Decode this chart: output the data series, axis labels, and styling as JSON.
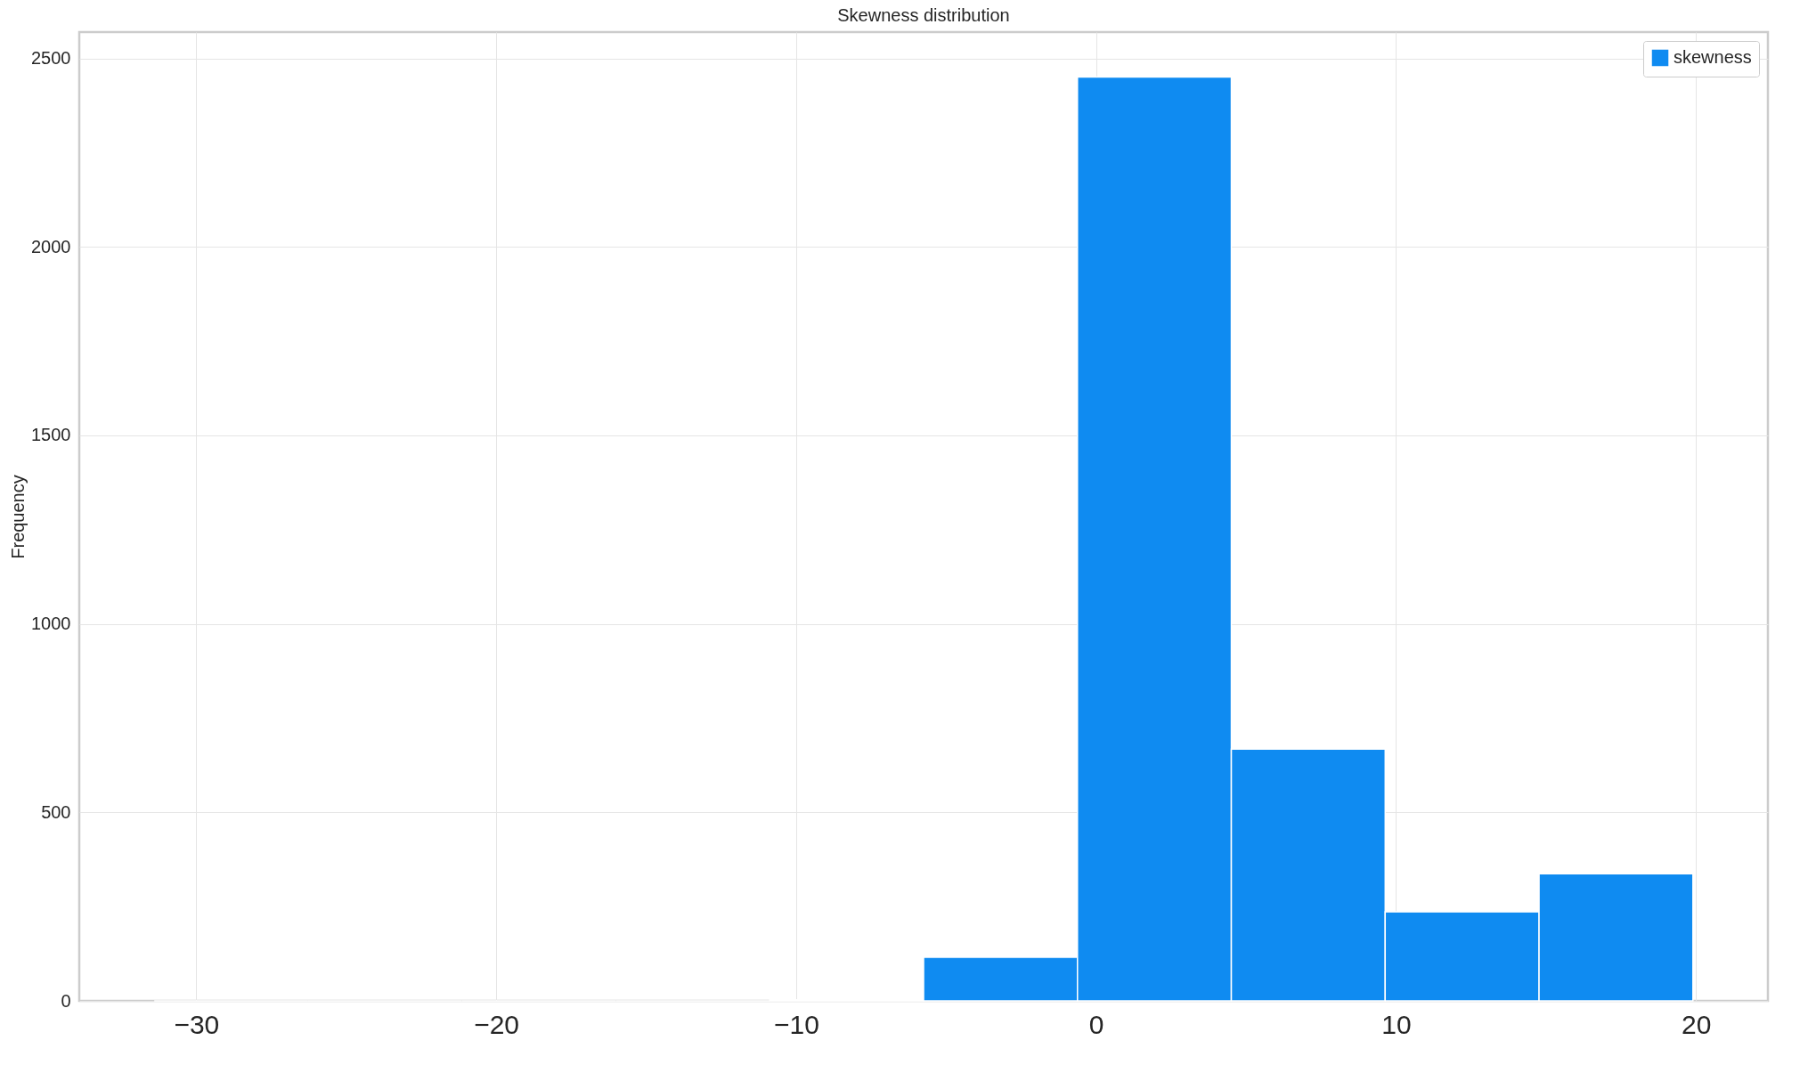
{
  "chart_data": {
    "type": "histogram",
    "title": "Skewness distribution",
    "ylabel": "Frequency",
    "bins": [
      -31.4,
      -26.27,
      -21.14,
      -16.01,
      -10.88,
      -5.75,
      -0.62,
      4.51,
      9.64,
      14.77,
      19.9
    ],
    "series": [
      {
        "name": "skewness",
        "color": "#0f8bf1",
        "values": [
          0,
          0,
          0,
          0,
          3,
          116,
          2451,
          668,
          236,
          337
        ]
      }
    ],
    "xlim": [
      -33.9,
      22.4
    ],
    "xticks": [
      -30,
      -20,
      -10,
      0,
      10,
      20
    ],
    "ylim": [
      0,
      2570
    ],
    "yticks": [
      0,
      500,
      1000,
      1500,
      2000,
      2500
    ],
    "grid": true,
    "legend": "top right"
  }
}
